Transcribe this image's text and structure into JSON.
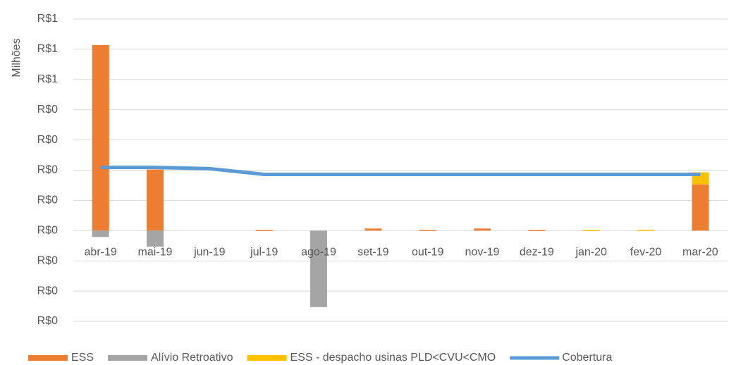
{
  "chart_data": {
    "type": "bar",
    "y_label": "Milhões",
    "categories": [
      "abr-19",
      "mai-19",
      "jun-19",
      "jul-19",
      "ago-19",
      "set-19",
      "out-19",
      "nov-19",
      "dez-19",
      "jan-20",
      "fev-20",
      "mar-20"
    ],
    "series": [
      {
        "name": "ESS",
        "type": "bar",
        "color": "#ed7d31",
        "values": [
          0.614,
          0.202,
          0,
          0.002,
          0,
          0.007,
          0.002,
          0.007,
          0.002,
          0,
          0,
          0.153
        ]
      },
      {
        "name": "Alívio Retroativo",
        "type": "bar",
        "color": "#a5a5a5",
        "values": [
          -0.021,
          -0.053,
          0,
          0,
          -0.253,
          0,
          0,
          0,
          0,
          0,
          0,
          0
        ]
      },
      {
        "name": "ESS - despacho usinas PLD<CVU<CMO",
        "type": "bar",
        "color": "#ffc000",
        "values": [
          0,
          0,
          0,
          0,
          0,
          0,
          0,
          0,
          0,
          0.002,
          0.002,
          0.04
        ]
      },
      {
        "name": "Cobertura",
        "type": "line",
        "color": "#5b9bd5",
        "values": [
          0.209,
          0.209,
          0.205,
          0.186,
          0.186,
          0.186,
          0.186,
          0.186,
          0.186,
          0.186,
          0.186,
          0.186
        ]
      }
    ],
    "ylim": [
      -0.3,
      0.7
    ],
    "yticks": [
      {
        "value": 0.7,
        "label": "R$1"
      },
      {
        "value": 0.6,
        "label": "R$1"
      },
      {
        "value": 0.5,
        "label": "R$1"
      },
      {
        "value": 0.4,
        "label": "R$0"
      },
      {
        "value": 0.3,
        "label": "R$0"
      },
      {
        "value": 0.2,
        "label": "R$0"
      },
      {
        "value": 0.1,
        "label": "R$0"
      },
      {
        "value": 0,
        "label": "R$0"
      },
      {
        "value": -0.1,
        "label": "R$0"
      },
      {
        "value": -0.2,
        "label": "R$0"
      },
      {
        "value": -0.3,
        "label": "R$0"
      }
    ],
    "grid": true,
    "legend": "bottom"
  }
}
